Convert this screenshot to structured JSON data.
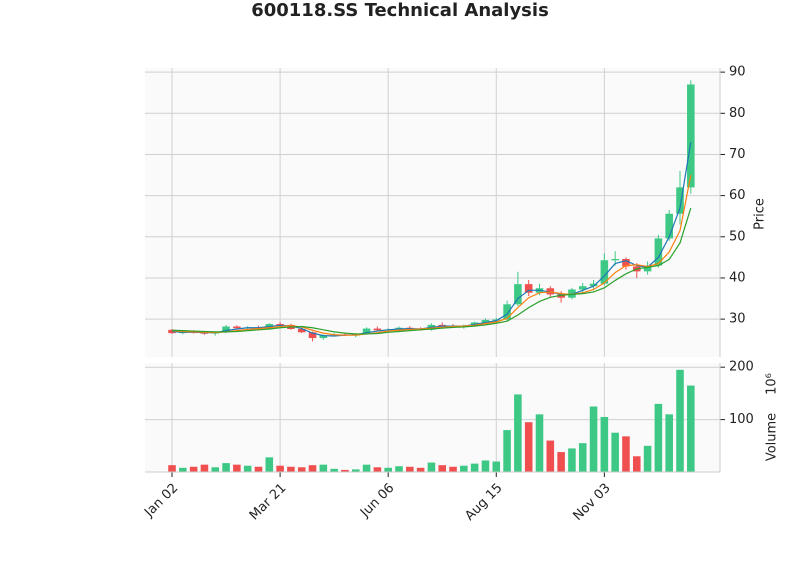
{
  "chart_data": {
    "type": "candlestick",
    "title": "600118.SS Technical Analysis",
    "up_color": "#3dc985",
    "down_color": "#ef4f4f",
    "grid": true,
    "open": [
      27.4,
      26.6,
      26.9,
      26.7,
      26.5,
      26.8,
      28.2,
      27.8,
      28.0,
      27.6,
      28.8,
      28.6,
      27.6,
      26.8,
      25.4,
      26.1,
      26.3,
      26.0,
      26.4,
      27.7,
      27.3,
      27.5,
      27.9,
      27.6,
      27.4,
      28.6,
      28.3,
      28.1,
      28.4,
      29.2,
      29.8,
      29.9,
      33.6,
      38.5,
      36.4,
      37.5,
      36.0,
      35.2,
      37.2,
      38.0,
      38.6,
      44.3,
      44.6,
      42.8,
      41.6,
      43.0,
      49.6,
      55.6,
      62.0
    ],
    "high": [
      27.6,
      27.2,
      27.3,
      27.1,
      27.0,
      28.6,
      28.5,
      28.3,
      28.4,
      29.0,
      29.3,
      28.9,
      27.9,
      27.0,
      26.3,
      26.6,
      26.7,
      26.6,
      28.0,
      28.2,
      27.8,
      28.2,
      28.3,
      28.0,
      29.0,
      29.2,
      28.8,
      28.7,
      29.4,
      30.2,
      30.3,
      34.5,
      41.5,
      39.5,
      38.6,
      38.0,
      36.8,
      37.6,
      38.8,
      39.5,
      46.0,
      46.5,
      45.0,
      43.6,
      44.0,
      50.5,
      56.5,
      66.0,
      88.0
    ],
    "low": [
      26.4,
      26.3,
      26.5,
      26.2,
      26.0,
      26.6,
      27.5,
      27.4,
      27.2,
      27.4,
      28.4,
      27.4,
      26.6,
      24.6,
      25.0,
      25.8,
      25.9,
      25.6,
      26.2,
      27.0,
      26.9,
      27.1,
      27.3,
      27.2,
      27.2,
      28.0,
      27.9,
      27.7,
      28.2,
      28.9,
      29.2,
      29.7,
      33.2,
      35.6,
      35.8,
      35.4,
      34.0,
      34.8,
      36.4,
      37.0,
      38.2,
      43.0,
      42.0,
      40.0,
      40.8,
      42.5,
      49.0,
      53.0,
      60.5
    ],
    "close": [
      26.6,
      26.9,
      26.7,
      26.5,
      26.8,
      28.2,
      27.8,
      28.0,
      27.6,
      28.8,
      28.6,
      27.6,
      26.8,
      25.4,
      26.1,
      26.3,
      26.0,
      26.4,
      27.7,
      27.3,
      27.5,
      27.9,
      27.6,
      27.4,
      28.6,
      28.3,
      28.1,
      28.4,
      29.2,
      29.8,
      29.9,
      33.6,
      38.5,
      36.4,
      37.5,
      36.0,
      35.2,
      37.2,
      38.0,
      38.6,
      44.3,
      44.6,
      42.8,
      41.6,
      43.0,
      49.6,
      55.6,
      62.0,
      87.0
    ],
    "moving_averages": [
      {
        "color": "#1f77b4",
        "values": [
          27.0,
          26.8,
          26.8,
          26.7,
          26.7,
          27.2,
          27.6,
          27.9,
          27.9,
          28.2,
          28.5,
          28.3,
          27.7,
          26.6,
          26.0,
          25.9,
          26.1,
          26.2,
          26.7,
          27.1,
          27.4,
          27.6,
          27.7,
          27.6,
          28.0,
          28.3,
          28.3,
          28.3,
          28.7,
          29.2,
          29.6,
          31.2,
          35.0,
          37.0,
          37.0,
          36.6,
          36.0,
          36.0,
          37.0,
          38.0,
          40.5,
          43.5,
          44.2,
          43.0,
          42.6,
          45.0,
          50.0,
          57.0,
          73.0
        ]
      },
      {
        "color": "#ff7f0e",
        "values": [
          27.2,
          27.0,
          26.9,
          26.8,
          26.7,
          26.9,
          27.2,
          27.5,
          27.7,
          27.9,
          28.2,
          28.4,
          28.1,
          27.3,
          26.6,
          26.2,
          26.1,
          26.1,
          26.4,
          26.7,
          27.1,
          27.3,
          27.5,
          27.6,
          27.8,
          28.0,
          28.2,
          28.3,
          28.5,
          28.9,
          29.3,
          30.2,
          32.8,
          35.2,
          36.4,
          36.6,
          36.2,
          36.0,
          36.4,
          37.2,
          38.8,
          41.3,
          43.0,
          43.2,
          42.8,
          43.5,
          46.3,
          51.5,
          65.0
        ]
      },
      {
        "color": "#2ca02c",
        "values": [
          27.3,
          27.2,
          27.1,
          27.0,
          26.9,
          26.9,
          27.0,
          27.2,
          27.4,
          27.6,
          27.9,
          28.1,
          28.2,
          27.9,
          27.4,
          26.9,
          26.6,
          26.4,
          26.4,
          26.5,
          26.8,
          27.0,
          27.2,
          27.4,
          27.6,
          27.8,
          28.0,
          28.1,
          28.3,
          28.6,
          29.0,
          29.5,
          31.0,
          32.8,
          34.3,
          35.3,
          35.8,
          36.0,
          36.2,
          36.6,
          37.6,
          39.4,
          41.0,
          42.2,
          42.6,
          43.0,
          44.5,
          48.5,
          57.0
        ]
      }
    ],
    "volume": [
      13,
      8,
      10,
      14,
      9,
      17,
      14,
      12,
      10,
      28,
      12,
      10,
      9,
      13,
      14,
      6,
      4,
      5,
      14,
      9,
      8,
      11,
      10,
      8,
      18,
      13,
      10,
      12,
      16,
      22,
      20,
      80,
      148,
      95,
      110,
      60,
      38,
      45,
      55,
      125,
      105,
      75,
      68,
      30,
      50,
      130,
      110,
      195,
      165
    ],
    "ylabel": "Price",
    "ylim": [
      20.8,
      91
    ],
    "yticks": [
      30,
      40,
      50,
      60,
      70,
      80,
      90
    ],
    "y2label": "Volume",
    "y2_offset": "10⁶",
    "y2lim": [
      0,
      208
    ],
    "y2ticks": [
      100,
      200
    ],
    "xlim": [
      -2.5,
      50.7
    ],
    "xticks": [
      {
        "value": 0,
        "label": "Jan 02"
      },
      {
        "value": 10,
        "label": "Mar 21"
      },
      {
        "value": 20,
        "label": "Jun 06"
      },
      {
        "value": 30,
        "label": "Aug 15"
      },
      {
        "value": 40,
        "label": "Nov 03"
      }
    ]
  }
}
